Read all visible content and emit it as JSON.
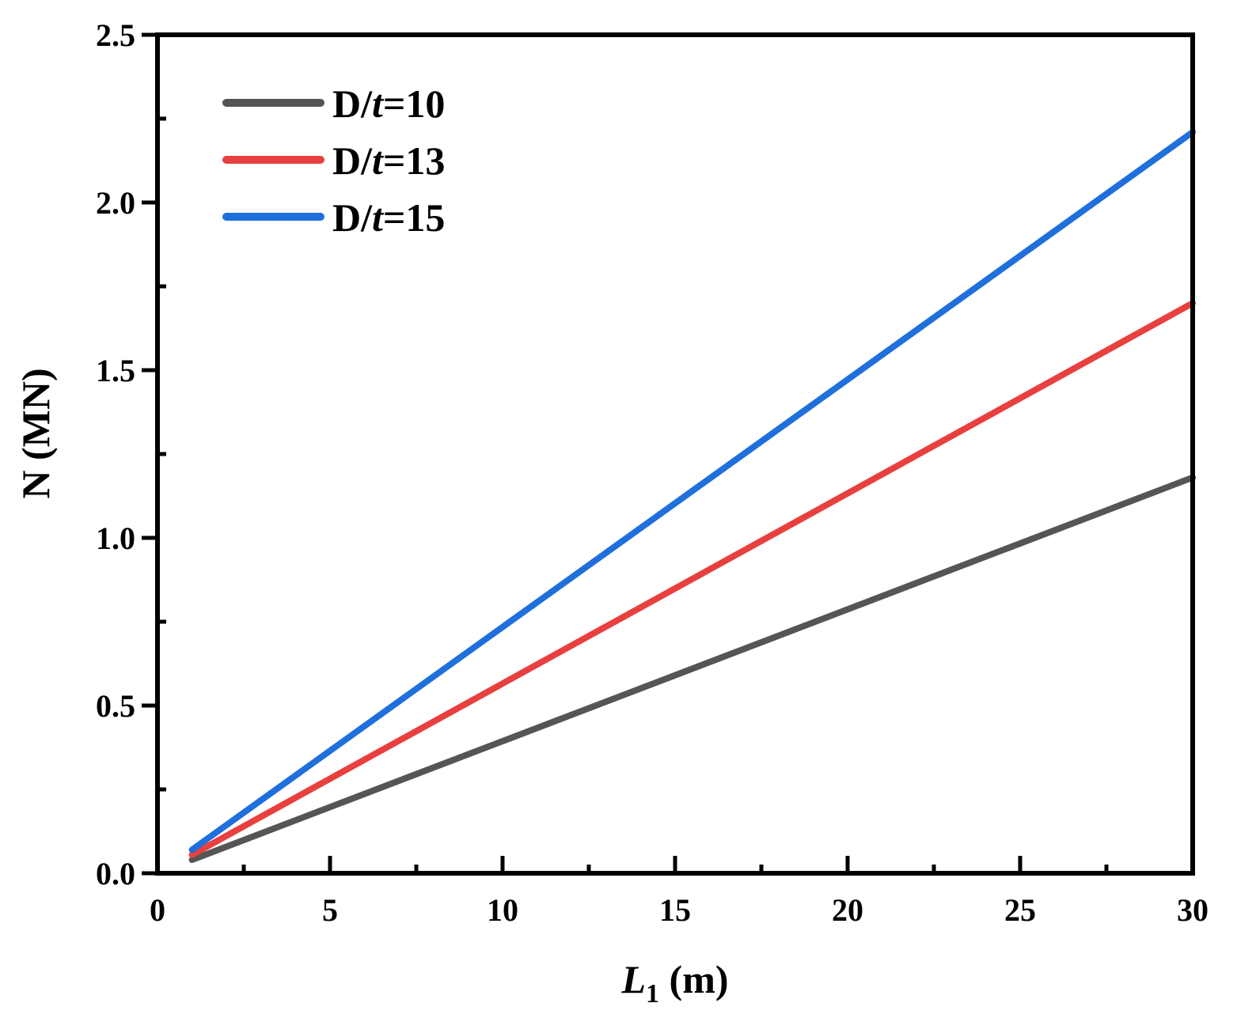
{
  "chart_data": {
    "type": "line",
    "title": "",
    "xlabel_main": "L",
    "xlabel_sub": "1",
    "xlabel_unit": " (m)",
    "ylabel": "N (MN)",
    "xlim": [
      0,
      30
    ],
    "ylim": [
      0,
      2.5
    ],
    "x_ticks": [
      "0",
      "5",
      "10",
      "15",
      "20",
      "25",
      "30"
    ],
    "y_ticks": [
      "0.0",
      "0.5",
      "1.0",
      "1.5",
      "2.0",
      "2.5"
    ],
    "grid": false,
    "legend_position": "top-left",
    "series": [
      {
        "name_prefix": "D/",
        "name_italic": "t",
        "name_suffix": "=10",
        "color": "#555555",
        "x": [
          1,
          30
        ],
        "y": [
          0.04,
          1.18
        ]
      },
      {
        "name_prefix": "D/",
        "name_italic": "t",
        "name_suffix": "=13",
        "color": "#e8403f",
        "x": [
          1,
          30
        ],
        "y": [
          0.055,
          1.7
        ]
      },
      {
        "name_prefix": "D/",
        "name_italic": "t",
        "name_suffix": "=15",
        "color": "#1f6fdc",
        "x": [
          1,
          30
        ],
        "y": [
          0.07,
          2.21
        ]
      }
    ]
  }
}
